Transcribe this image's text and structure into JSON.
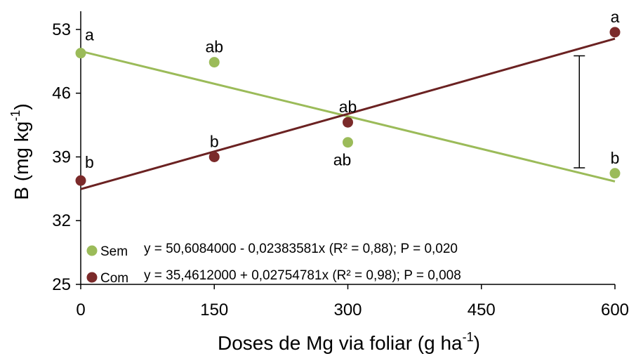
{
  "chart_data": {
    "type": "scatter",
    "xlabel": "Doses de Mg via foliar (g ha",
    "xlabel_sup": "-1",
    "xlabel_end": ")",
    "ylabel": "B (mg kg",
    "ylabel_sup": "-1",
    "ylabel_end": ")",
    "x_ticks": [
      0,
      150,
      300,
      450,
      600
    ],
    "y_ticks": [
      25,
      32,
      39,
      46,
      53
    ],
    "xlim": [
      0,
      600
    ],
    "ylim": [
      25,
      55
    ],
    "grid": false,
    "series": [
      {
        "name": "Sem",
        "color": "#9bbb59",
        "trend_color": "#9bbb59",
        "x": [
          0,
          150,
          300,
          600
        ],
        "y": [
          50.4,
          49.4,
          40.6,
          37.2
        ],
        "labels": [
          "a",
          "ab",
          "ab",
          "b"
        ],
        "label_pos": [
          "above-right",
          "above",
          "below",
          "above"
        ],
        "equation": "y = 50,6084000 - 0,02383581x (R² = 0,88); P = 0,020",
        "intercept": 50.6084,
        "slope": -0.02383581
      },
      {
        "name": "Com",
        "color": "#7b2a2a",
        "trend_color": "#6b2222",
        "x": [
          0,
          150,
          300,
          600
        ],
        "y": [
          36.4,
          39.0,
          42.8,
          52.7
        ],
        "labels": [
          "b",
          "b",
          "ab",
          "a"
        ],
        "label_pos": [
          "above-right",
          "above",
          "above",
          "above"
        ],
        "equation": "y = 35,4612000 + 0,02754781x (R² = 0,98); P = 0,008",
        "intercept": 35.4612,
        "slope": 0.02754781
      }
    ],
    "error_bar": {
      "x": 560,
      "y_low": 37.8,
      "y_high": 50.1
    },
    "legend_placement": "bottom-left"
  }
}
